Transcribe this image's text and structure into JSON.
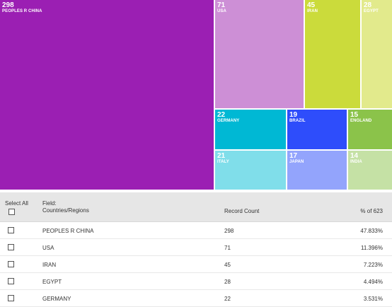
{
  "chart_data": {
    "type": "treemap",
    "total": 623,
    "items": [
      {
        "label": "PEOPLES R CHINA",
        "value": 298,
        "color": "#9b1fb3"
      },
      {
        "label": "USA",
        "value": 71,
        "color": "#cd8fd6"
      },
      {
        "label": "IRAN",
        "value": 45,
        "color": "#cbdb3b"
      },
      {
        "label": "EGYPT",
        "value": 28,
        "color": "#e2ea8c"
      },
      {
        "label": "GERMANY",
        "value": 22,
        "color": "#00b8d4"
      },
      {
        "label": "BRAZIL",
        "value": 19,
        "color": "#2e4dfb"
      },
      {
        "label": "ENGLAND",
        "value": 15,
        "color": "#8bc34a"
      },
      {
        "label": "ITALY",
        "value": 21,
        "color": "#80deea"
      },
      {
        "label": "JAPAN",
        "value": 17,
        "color": "#93a4fc"
      },
      {
        "label": "INDIA",
        "value": 14,
        "color": "#c5e1a5"
      }
    ]
  },
  "table": {
    "select_all_label": "Select All",
    "field_label": "Field:",
    "field_name": "Countries/Regions",
    "count_header": "Record Count",
    "pct_header": "% of 623",
    "rows": [
      {
        "name": "PEOPLES R CHINA",
        "count": "298",
        "pct": "47.833%"
      },
      {
        "name": "USA",
        "count": "71",
        "pct": "11.396%"
      },
      {
        "name": "IRAN",
        "count": "45",
        "pct": "7.223%"
      },
      {
        "name": "EGYPT",
        "count": "28",
        "pct": "4.494%"
      },
      {
        "name": "GERMANY",
        "count": "22",
        "pct": "3.531%"
      }
    ]
  }
}
